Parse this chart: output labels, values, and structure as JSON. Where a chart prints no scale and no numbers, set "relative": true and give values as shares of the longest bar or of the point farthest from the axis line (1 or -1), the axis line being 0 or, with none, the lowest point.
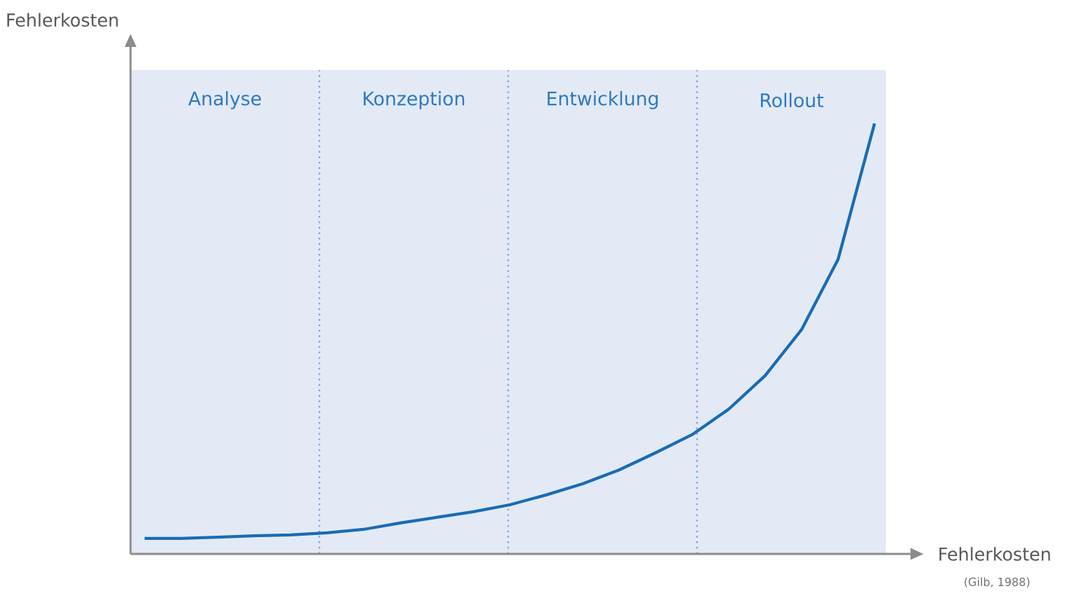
{
  "chart_data": {
    "type": "line",
    "xlabel": "Fehlerkosten",
    "relative": true,
    "annotations": [
      "Fehlerkosten",
      "Analyse",
      "Konzeption",
      "Entwicklung",
      "Rollout",
      "(Gilb, 1988)"
    ],
    "categories": [
      null,
      null,
      null,
      null,
      null,
      null,
      null,
      null,
      null,
      null,
      null,
      null,
      null,
      null,
      null,
      null,
      null,
      null,
      null,
      null,
      null
    ],
    "series": [
      {
        "color": "#1a6bb5",
        "values": [
          0.036,
          0.036,
          0.039,
          0.042,
          0.044,
          0.049,
          0.057,
          0.072,
          0.085,
          0.098,
          0.114,
          0.137,
          0.163,
          0.195,
          0.235,
          0.277,
          0.336,
          0.414,
          0.521,
          0.684,
          1
        ]
      }
    ]
  }
}
